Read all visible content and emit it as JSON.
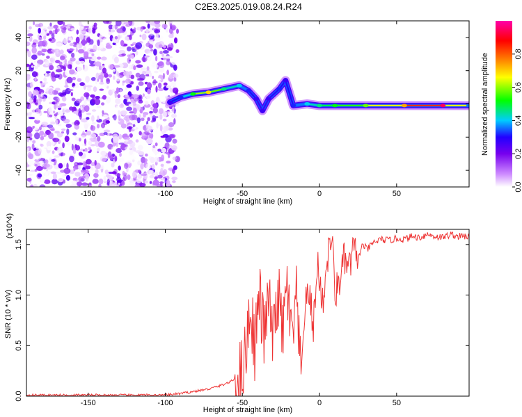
{
  "title": "C2E3.2025.019.08.24.R24",
  "chart_data": [
    {
      "type": "heatmap",
      "xlabel": "Height of straight line (km)",
      "ylabel": "Frequency (Hz)",
      "xlim": [
        -190,
        97
      ],
      "ylim": [
        -50,
        50
      ],
      "xticks": [
        -150,
        -100,
        -50,
        0,
        50
      ],
      "yticks": [
        -40,
        -20,
        0,
        20,
        40
      ],
      "colorbar": {
        "label": "Normalized spectral amplitude",
        "range": [
          0,
          1
        ],
        "ticks": [
          0.0,
          0.2,
          0.4,
          0.6,
          0.8
        ],
        "colors": [
          "#ffffff",
          "#cc88ff",
          "#7700ee",
          "#2200ff",
          "#00ccff",
          "#00ff00",
          "#ffff00",
          "#ff8800",
          "#ff0000",
          "#ff00aa"
        ]
      },
      "noise_region": {
        "x_range": [
          -190,
          -92
        ],
        "freq_range": [
          -50,
          50
        ]
      },
      "ridge": [
        {
          "x": -97,
          "freq": 1,
          "amp": 0.3
        },
        {
          "x": -90,
          "freq": 4,
          "amp": 0.35
        },
        {
          "x": -82,
          "freq": 6,
          "amp": 0.55
        },
        {
          "x": -72,
          "freq": 7,
          "amp": 0.7
        },
        {
          "x": -62,
          "freq": 9,
          "amp": 0.5
        },
        {
          "x": -52,
          "freq": 11,
          "amp": 0.45
        },
        {
          "x": -46,
          "freq": 8,
          "amp": 0.35
        },
        {
          "x": -41,
          "freq": 3,
          "amp": 0.3
        },
        {
          "x": -37,
          "freq": -4,
          "amp": 0.3
        },
        {
          "x": -33,
          "freq": 3,
          "amp": 0.3
        },
        {
          "x": -26,
          "freq": 9,
          "amp": 0.35
        },
        {
          "x": -22,
          "freq": 14,
          "amp": 0.3
        },
        {
          "x": -17,
          "freq": -1,
          "amp": 0.35
        },
        {
          "x": -8,
          "freq": 0,
          "amp": 0.45
        },
        {
          "x": 0,
          "freq": -1,
          "amp": 0.5
        },
        {
          "x": 10,
          "freq": -1,
          "amp": 0.55
        },
        {
          "x": 30,
          "freq": -1,
          "amp": 0.6
        },
        {
          "x": 55,
          "freq": -1,
          "amp": 0.75
        },
        {
          "x": 80,
          "freq": -1,
          "amp": 0.95
        },
        {
          "x": 97,
          "freq": -1,
          "amp": 0.4
        }
      ]
    },
    {
      "type": "line",
      "xlabel": "Height of straight line (km)",
      "ylabel": "SNR (10 * v/v)",
      "y_multiplier": "(x10^4)",
      "xlim": [
        -190,
        97
      ],
      "ylim": [
        0,
        1.65
      ],
      "xticks": [
        -150,
        -100,
        -50,
        0,
        50
      ],
      "yticks": [
        0.0,
        0.5,
        1.0,
        1.5
      ],
      "color": "#ee3333",
      "series": [
        {
          "x": [
            -190,
            -150,
            -100,
            -88,
            -80,
            -72,
            -65,
            -58,
            -52,
            -48,
            -45,
            -42,
            -39,
            -36,
            -33,
            -30,
            -27,
            -24,
            -21,
            -18,
            -15,
            -12,
            -10,
            -7,
            -4,
            -1,
            2,
            5,
            8,
            10,
            13,
            16,
            19,
            22,
            25,
            28,
            31,
            35,
            40,
            45,
            50,
            55,
            60,
            65,
            70,
            75,
            80,
            85,
            90,
            97
          ],
          "y": [
            0.01,
            0.01,
            0.01,
            0.03,
            0.05,
            0.07,
            0.1,
            0.14,
            0.2,
            0.4,
            0.9,
            0.5,
            1.0,
            0.6,
            0.95,
            0.55,
            1.05,
            0.6,
            1.1,
            0.5,
            0.95,
            0.15,
            0.8,
            1.05,
            0.7,
            1.3,
            0.9,
            1.35,
            1.6,
            1.0,
            1.15,
            1.35,
            1.25,
            1.45,
            1.35,
            1.5,
            1.45,
            1.52,
            1.55,
            1.54,
            1.56,
            1.55,
            1.58,
            1.57,
            1.6,
            1.58,
            1.57,
            1.6,
            1.58,
            1.58
          ]
        }
      ]
    }
  ]
}
